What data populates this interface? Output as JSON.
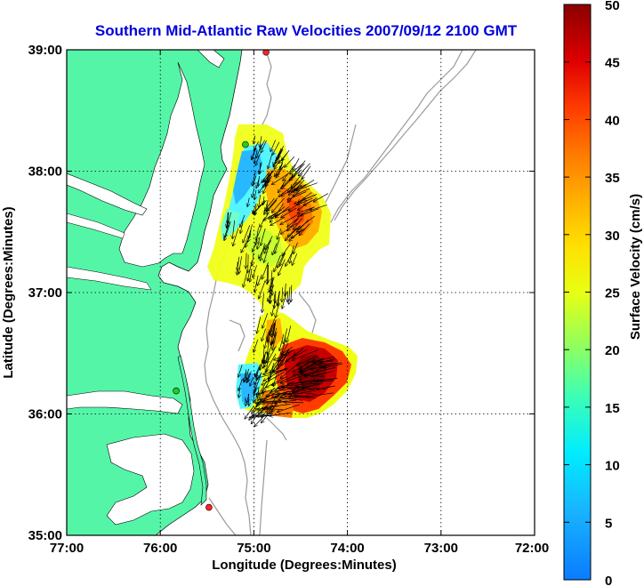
{
  "title": "Southern Mid-Atlantic Raw Velocities 2007/09/12 2100 GMT",
  "x_axis": {
    "label": "Longitude (Degrees:Minutes)",
    "ticks": [
      "77:00",
      "76:00",
      "75:00",
      "74:00",
      "73:00",
      "72:00"
    ]
  },
  "y_axis": {
    "label": "Latitude (Degrees:Minutes)",
    "ticks": [
      "39:00",
      "38:00",
      "37:00",
      "36:00",
      "35:00"
    ]
  },
  "colorbar": {
    "label": "Surface Velocity (cm/s)",
    "ticks": [
      "50",
      "45",
      "40",
      "35",
      "30",
      "25",
      "20",
      "15",
      "10",
      "5",
      "0"
    ],
    "colormap": "jet",
    "range": [
      0,
      50
    ]
  },
  "colors": {
    "land": "#55f5a8",
    "coastline": "#000000",
    "bathymetry": "#9a9a9a",
    "title": "#0000dd",
    "station_green": "#22cc22",
    "station_red": "#ff2222"
  },
  "chart_data": {
    "type": "heatmap",
    "title": "Southern Mid-Atlantic Raw Velocities 2007/09/12 2100 GMT",
    "xlabel": "Longitude (Degrees:Minutes)",
    "ylabel": "Latitude (Degrees:Minutes)",
    "xlim": [
      -77,
      -72
    ],
    "ylim": [
      35,
      39
    ],
    "grid": true,
    "color_scale_label": "Surface Velocity (cm/s)",
    "color_scale_range": [
      0,
      50
    ],
    "north_velocity_field": [
      {
        "lon": -74.92,
        "lat": 38.22,
        "speed": 15,
        "u": -0.3,
        "v": -1.0
      },
      {
        "lon": -74.78,
        "lat": 38.18,
        "speed": 17,
        "u": -0.4,
        "v": -1.0
      },
      {
        "lon": -74.62,
        "lat": 38.1,
        "speed": 21,
        "u": -0.6,
        "v": -0.9
      },
      {
        "lon": -74.48,
        "lat": 38.05,
        "speed": 24,
        "u": -0.7,
        "v": -0.8
      },
      {
        "lon": -74.92,
        "lat": 38.0,
        "speed": 12,
        "u": -0.2,
        "v": -1.0
      },
      {
        "lon": -74.75,
        "lat": 37.98,
        "speed": 22,
        "u": -0.6,
        "v": -0.9
      },
      {
        "lon": -74.55,
        "lat": 37.92,
        "speed": 30,
        "u": -0.8,
        "v": -0.7
      },
      {
        "lon": -74.4,
        "lat": 37.85,
        "speed": 34,
        "u": -0.9,
        "v": -0.5
      },
      {
        "lon": -74.3,
        "lat": 37.75,
        "speed": 31,
        "u": -0.9,
        "v": -0.4
      },
      {
        "lon": -74.95,
        "lat": 37.78,
        "speed": 14,
        "u": -0.2,
        "v": -1.0
      },
      {
        "lon": -74.78,
        "lat": 37.7,
        "speed": 26,
        "u": -0.6,
        "v": -0.8
      },
      {
        "lon": -74.6,
        "lat": 37.65,
        "speed": 31,
        "u": -0.8,
        "v": -0.6
      },
      {
        "lon": -74.45,
        "lat": 37.55,
        "speed": 29,
        "u": -0.7,
        "v": -0.7
      },
      {
        "lon": -75.2,
        "lat": 37.6,
        "speed": 23,
        "u": -0.2,
        "v": -1.0
      },
      {
        "lon": -75.0,
        "lat": 37.5,
        "speed": 25,
        "u": -0.3,
        "v": -1.0
      },
      {
        "lon": -74.8,
        "lat": 37.45,
        "speed": 27,
        "u": -0.4,
        "v": -0.9
      },
      {
        "lon": -74.62,
        "lat": 37.35,
        "speed": 27,
        "u": -0.4,
        "v": -0.9
      },
      {
        "lon": -75.1,
        "lat": 37.25,
        "speed": 24,
        "u": -0.1,
        "v": -1.0
      },
      {
        "lon": -74.88,
        "lat": 37.18,
        "speed": 25,
        "u": -0.2,
        "v": -1.0
      },
      {
        "lon": -74.7,
        "lat": 37.05,
        "speed": 24,
        "u": -0.2,
        "v": -1.0
      },
      {
        "lon": -74.82,
        "lat": 36.95,
        "speed": 24,
        "u": -0.1,
        "v": -1.0
      }
    ],
    "south_velocity_field": [
      {
        "lon": -74.85,
        "lat": 36.75,
        "speed": 27,
        "u": -0.2,
        "v": -1.0
      },
      {
        "lon": -74.7,
        "lat": 36.7,
        "speed": 26,
        "u": -0.3,
        "v": -1.0
      },
      {
        "lon": -74.9,
        "lat": 36.55,
        "speed": 22,
        "u": -0.2,
        "v": -1.0
      },
      {
        "lon": -74.7,
        "lat": 36.52,
        "speed": 28,
        "u": -0.5,
        "v": -0.9
      },
      {
        "lon": -74.5,
        "lat": 36.48,
        "speed": 36,
        "u": -0.8,
        "v": -0.6
      },
      {
        "lon": -74.3,
        "lat": 36.45,
        "speed": 42,
        "u": -0.9,
        "v": -0.4
      },
      {
        "lon": -74.1,
        "lat": 36.4,
        "speed": 36,
        "u": -1.0,
        "v": -0.2
      },
      {
        "lon": -75.05,
        "lat": 36.35,
        "speed": 12,
        "u": -0.2,
        "v": -1.0
      },
      {
        "lon": -74.85,
        "lat": 36.35,
        "speed": 24,
        "u": -0.4,
        "v": -0.9
      },
      {
        "lon": -74.6,
        "lat": 36.3,
        "speed": 46,
        "u": -0.9,
        "v": -0.4
      },
      {
        "lon": -74.4,
        "lat": 36.28,
        "speed": 48,
        "u": -1.0,
        "v": -0.2
      },
      {
        "lon": -74.2,
        "lat": 36.25,
        "speed": 44,
        "u": -1.0,
        "v": 0.0
      },
      {
        "lon": -75.05,
        "lat": 36.18,
        "speed": 9,
        "u": -0.1,
        "v": -1.0
      },
      {
        "lon": -74.85,
        "lat": 36.15,
        "speed": 22,
        "u": -0.5,
        "v": -0.8
      },
      {
        "lon": -74.6,
        "lat": 36.15,
        "speed": 47,
        "u": -1.0,
        "v": -0.2
      },
      {
        "lon": -74.38,
        "lat": 36.12,
        "speed": 45,
        "u": -1.0,
        "v": 0.1
      },
      {
        "lon": -74.9,
        "lat": 36.05,
        "speed": 20,
        "u": -0.6,
        "v": -0.7
      },
      {
        "lon": -74.7,
        "lat": 36.03,
        "speed": 40,
        "u": -1.0,
        "v": 0.0
      }
    ],
    "stations": [
      {
        "name": "",
        "lon": -74.87,
        "lat": 38.98,
        "color": "red"
      },
      {
        "name": "",
        "lon": -75.09,
        "lat": 38.22,
        "color": "green"
      },
      {
        "name": "",
        "lon": -75.83,
        "lat": 36.19,
        "color": "green"
      },
      {
        "name": "",
        "lon": -75.48,
        "lat": 35.23,
        "color": "red"
      }
    ]
  }
}
